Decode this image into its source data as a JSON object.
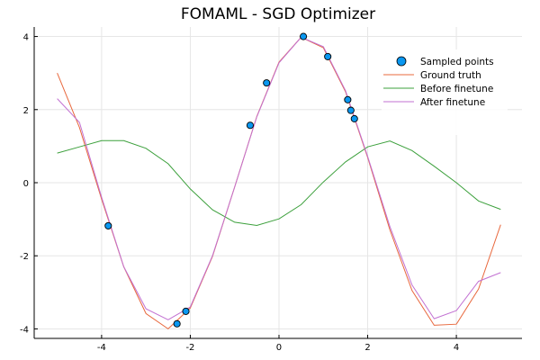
{
  "chart_data": {
    "type": "line",
    "title": "FOMAML - SGD Optimizer",
    "xlabel": "",
    "ylabel": "",
    "xlim": [
      -5.52,
      5.48
    ],
    "ylim": [
      -4.26,
      4.26
    ],
    "xticks": [
      -4,
      -2,
      0,
      2,
      4
    ],
    "yticks": [
      -4,
      -2,
      0,
      2,
      4
    ],
    "grid": true,
    "legend_position": "top-right",
    "x": [
      -5,
      -4.5,
      -4,
      -3.5,
      -3,
      -2.5,
      -2,
      -1.5,
      -1,
      -0.5,
      0,
      0.5,
      1,
      1.5,
      2,
      2.5,
      3,
      3.5,
      4,
      4.5,
      5
    ],
    "scatter": {
      "name": "Sampled points",
      "color": "#0a97f0",
      "points": [
        [
          -3.85,
          -1.18
        ],
        [
          -2.3,
          -3.86
        ],
        [
          -2.1,
          -3.52
        ],
        [
          -0.65,
          1.57
        ],
        [
          -0.28,
          2.73
        ],
        [
          0.55,
          4.0
        ],
        [
          1.1,
          3.45
        ],
        [
          1.55,
          2.27
        ],
        [
          1.62,
          1.98
        ],
        [
          1.7,
          1.75
        ]
      ]
    },
    "series": [
      {
        "name": "Ground truth",
        "color": "#e8683d",
        "values": [
          3.0,
          1.51,
          -0.45,
          -2.3,
          -3.58,
          -4.0,
          -3.43,
          -2.02,
          -0.12,
          1.81,
          3.3,
          3.98,
          3.69,
          2.49,
          0.69,
          -1.29,
          -2.95,
          -3.9,
          -3.87,
          -2.91,
          -1.15
        ]
      },
      {
        "name": "Before finetune",
        "color": "#3ca03c",
        "values": [
          0.81,
          0.98,
          1.15,
          1.15,
          0.94,
          0.52,
          -0.17,
          -0.74,
          -1.08,
          -1.17,
          -0.99,
          -0.6,
          0.02,
          0.57,
          0.98,
          1.14,
          0.88,
          0.45,
          0.0,
          -0.5,
          -0.73
        ]
      },
      {
        "name": "After finetune",
        "color": "#c271d2",
        "values": [
          2.3,
          1.65,
          -0.4,
          -2.3,
          -3.45,
          -3.75,
          -3.4,
          -2.0,
          -0.12,
          1.8,
          3.28,
          3.98,
          3.72,
          2.52,
          0.72,
          -1.2,
          -2.8,
          -3.72,
          -3.5,
          -2.7,
          -2.46
        ]
      }
    ]
  }
}
